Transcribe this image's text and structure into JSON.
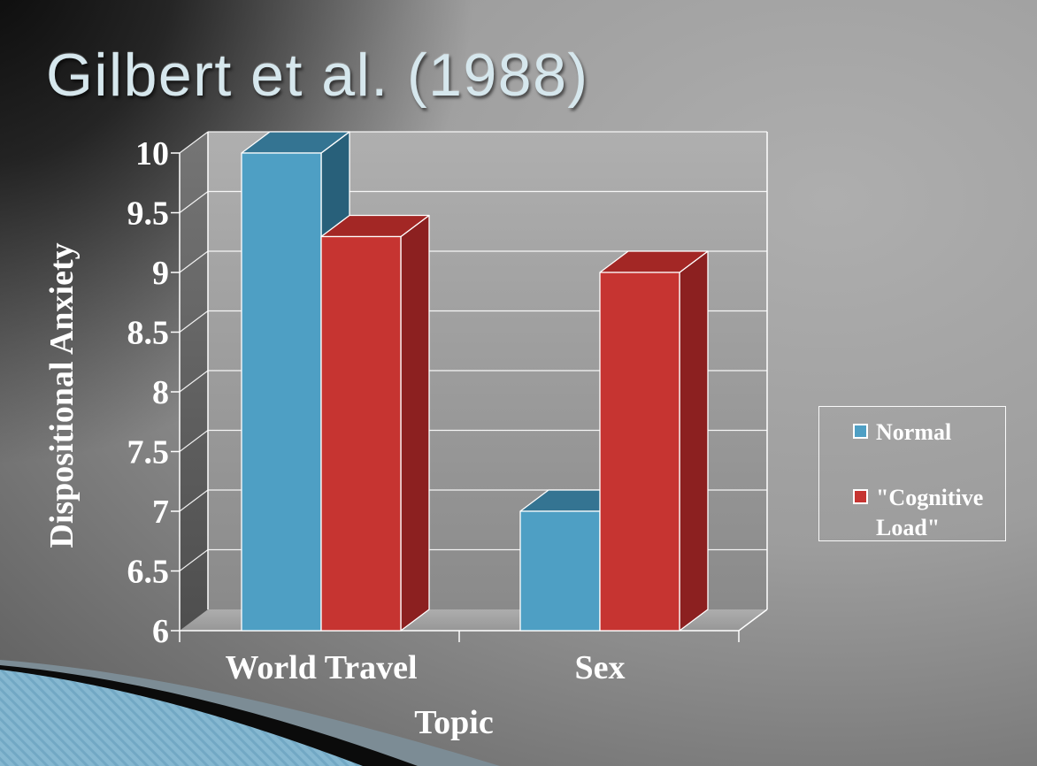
{
  "slide": {
    "title": "Gilbert et al. (1988)"
  },
  "chart_data": {
    "type": "bar",
    "projection": "3d",
    "title": "",
    "categories": [
      "World Travel",
      "Sex"
    ],
    "series": [
      {
        "name": "Normal",
        "values": [
          10,
          7
        ],
        "color": "#4E9FC4",
        "color_top": "#347492",
        "color_side": "#28607A"
      },
      {
        "name": "\"Cognitive Load\"",
        "values": [
          9.3,
          9
        ],
        "color": "#C63431",
        "color_top": "#A32725",
        "color_side": "#8C2020"
      }
    ],
    "xlabel": "Topic",
    "ylabel": "Dispositional Anxiety",
    "ylim": [
      6,
      10
    ],
    "ytick_step": 0.5,
    "yticks": [
      "10",
      "9.5",
      "9",
      "8.5",
      "8",
      "7.5",
      "7",
      "6.5",
      "6"
    ],
    "grid": true,
    "legend_position": "right",
    "legend_items": [
      {
        "label": "Normal",
        "color": "#4E9FC4"
      },
      {
        "label": "\"Cognitive\nLoad\"",
        "color": "#C63431"
      }
    ],
    "colors": {
      "grid_line": "#FFFFFF",
      "text": "#FFFFFF",
      "wall_top": "#AFAFAF",
      "wall_bottom": "#8A8A8A"
    }
  }
}
